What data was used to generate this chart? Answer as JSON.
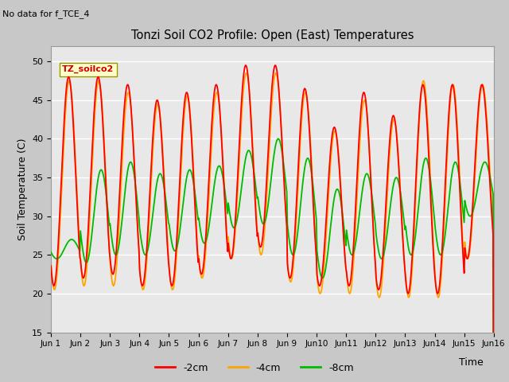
{
  "title": "Tonzi Soil CO2 Profile: Open (East) Temperatures",
  "top_left_text": "No data for f_TCE_4",
  "ylabel": "Soil Temperature (C)",
  "xlabel": "Time",
  "legend_label": "TZ_soilco2",
  "series_labels": [
    "-2cm",
    "-4cm",
    "-8cm"
  ],
  "series_colors": [
    "#ff0000",
    "#ffa500",
    "#00bb00"
  ],
  "ylim": [
    15,
    52
  ],
  "yticks": [
    15,
    20,
    25,
    30,
    35,
    40,
    45,
    50
  ],
  "fig_bg": "#c8c8c8",
  "plot_bg": "#e8e8e8",
  "grid_color": "#ffffff",
  "n_days": 15,
  "pts_per_day": 48,
  "day_peaks_2cm": [
    48,
    48,
    47,
    45,
    46,
    47,
    49.5,
    49.5,
    46.5,
    41.5,
    46,
    43,
    47,
    47,
    47
  ],
  "day_peaks_4cm": [
    47.5,
    47.5,
    46,
    44.5,
    45.5,
    46,
    48.5,
    48.5,
    46,
    41,
    45,
    42.5,
    47.5,
    47,
    47
  ],
  "day_peaks_8cm": [
    27,
    36,
    37,
    35.5,
    36,
    36.5,
    38.5,
    40,
    37.5,
    33.5,
    35.5,
    35,
    37.5,
    37,
    37
  ],
  "day_troughs_2cm": [
    21,
    22,
    22.5,
    21,
    21,
    22.5,
    24.5,
    26,
    22,
    21,
    21,
    20.5,
    20,
    20,
    24.5
  ],
  "day_troughs_4cm": [
    20.5,
    21,
    21,
    20.5,
    20.5,
    22,
    24.5,
    25,
    21.5,
    20,
    20,
    19.5,
    19.5,
    19.5,
    24.5
  ],
  "day_troughs_8cm": [
    24.5,
    24,
    25,
    25,
    25.5,
    26.5,
    28.5,
    29,
    25,
    22,
    25,
    24.5,
    25,
    25,
    30
  ],
  "phase_2cm": 0.35,
  "phase_4cm": 0.37,
  "phase_8cm": 0.45
}
